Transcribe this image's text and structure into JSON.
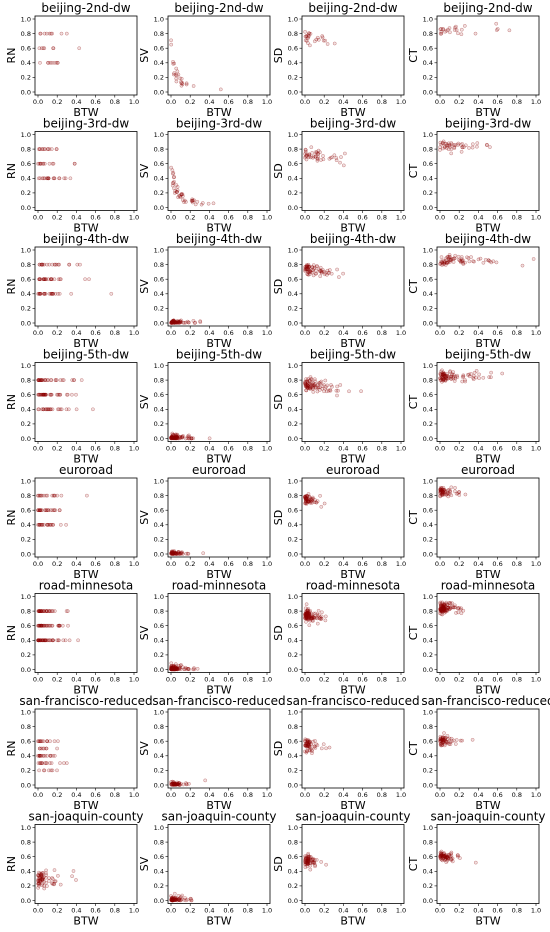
{
  "chart_data": {
    "type": "scatter",
    "layout": {
      "rows": 8,
      "cols": 4
    },
    "marker_color": "#8B0000",
    "x_label": "BTW",
    "y_labels": [
      "RN",
      "SV",
      "SD",
      "CT"
    ],
    "x_ticks": [
      "0.0",
      "0.2",
      "0.4",
      "0.6",
      "0.8",
      "1.0"
    ],
    "y_ticks": [
      "0.0",
      "0.2",
      "0.4",
      "0.6",
      "0.8",
      "1.0"
    ],
    "xlim": [
      0,
      1
    ],
    "ylim": [
      0,
      1
    ],
    "datasets": [
      "beijing-2nd-dw",
      "beijing-3rd-dw",
      "beijing-4th-dw",
      "beijing-5th-dw",
      "euroroad",
      "road-minnesota",
      "san-francisco-reduced",
      "san-joaquin-county"
    ]
  }
}
